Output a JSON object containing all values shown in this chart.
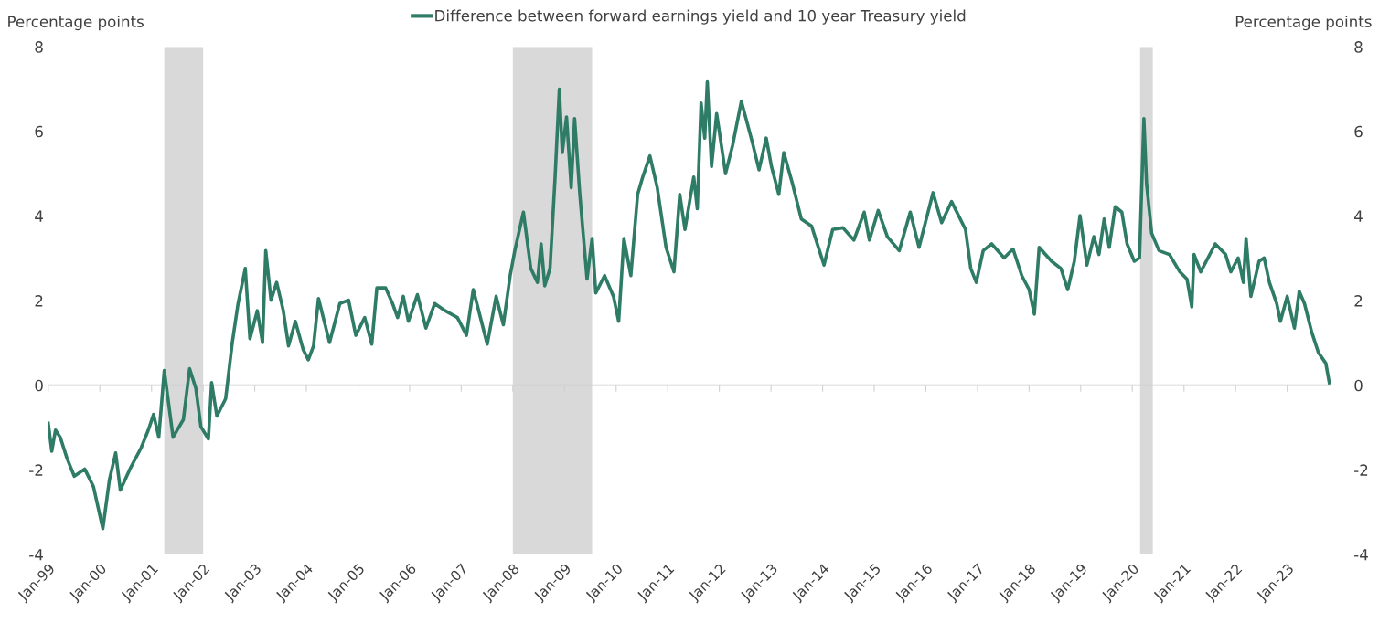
{
  "chart_data": {
    "type": "line",
    "ylabel": "Percentage points",
    "y2label": "Percentage points",
    "xlim": [
      "1999-01-01",
      "2023-11-05"
    ],
    "xticks": [
      {
        "value": "1999-01-01",
        "label": "Jan-99"
      },
      {
        "value": "2000-01-01",
        "label": "Jan-00"
      },
      {
        "value": "2001-01-01",
        "label": "Jan-01"
      },
      {
        "value": "2002-01-01",
        "label": "Jan-02"
      },
      {
        "value": "2003-01-01",
        "label": "Jan-03"
      },
      {
        "value": "2004-01-01",
        "label": "Jan-04"
      },
      {
        "value": "2005-01-01",
        "label": "Jan-05"
      },
      {
        "value": "2006-01-01",
        "label": "Jan-06"
      },
      {
        "value": "2007-01-01",
        "label": "Jan-07"
      },
      {
        "value": "2008-01-01",
        "label": "Jan-08"
      },
      {
        "value": "2009-01-01",
        "label": "Jan-09"
      },
      {
        "value": "2010-01-01",
        "label": "Jan-10"
      },
      {
        "value": "2011-01-01",
        "label": "Jan-11"
      },
      {
        "value": "2012-01-01",
        "label": "Jan-12"
      },
      {
        "value": "2013-01-01",
        "label": "Jan-13"
      },
      {
        "value": "2014-01-01",
        "label": "Jan-14"
      },
      {
        "value": "2015-01-01",
        "label": "Jan-15"
      },
      {
        "value": "2016-01-01",
        "label": "Jan-16"
      },
      {
        "value": "2017-01-01",
        "label": "Jan-17"
      },
      {
        "value": "2018-01-01",
        "label": "Jan-18"
      },
      {
        "value": "2019-01-01",
        "label": "Jan-19"
      },
      {
        "value": "2020-01-01",
        "label": "Jan-20"
      },
      {
        "value": "2021-01-01",
        "label": "Jan-21"
      },
      {
        "value": "2022-01-01",
        "label": "Jan-22"
      },
      {
        "value": "2023-01-01",
        "label": "Jan-23"
      }
    ],
    "ylim": [
      -4,
      8
    ],
    "yticks": [
      -4,
      -2,
      0,
      2,
      4,
      6,
      8
    ],
    "y2lim": [
      -4,
      8
    ],
    "y2ticks": [
      -4,
      -2,
      0,
      2,
      4,
      6,
      8
    ],
    "grid": false,
    "ref_lines": [
      {
        "axis": "y",
        "value": 0,
        "color": "#d0d0d0"
      }
    ],
    "legend": "top",
    "line_style": "solid",
    "marker": "none",
    "bands": [
      {
        "axis": "x",
        "from": "2001-04-01",
        "to": "2002-01-01",
        "color": "#d9d9d9"
      },
      {
        "axis": "x",
        "from": "2008-01-01",
        "to": "2009-07-15",
        "color": "#d9d9d9"
      },
      {
        "axis": "x",
        "from": "2020-02-25",
        "to": "2020-05-25",
        "color": "#d9d9d9"
      }
    ],
    "series": [
      {
        "name": "Difference between forward earnings yield and 10 year Treasury yield",
        "color": "#2e7b66",
        "x": [
          "1999-01-01",
          "1999-01-26",
          "1999-02-21",
          "1999-03-27",
          "1999-05-14",
          "1999-07-04",
          "1999-09-16",
          "1999-11-17",
          "2000-01-22",
          "2000-03-09",
          "2000-04-22",
          "2000-05-25",
          "2000-08-07",
          "2000-10-19",
          "2000-12-09",
          "2001-01-15",
          "2001-02-21",
          "2001-04-01",
          "2001-06-02",
          "2001-08-14",
          "2001-09-27",
          "2001-11-10",
          "2001-12-16",
          "2002-02-07",
          "2002-03-02",
          "2002-04-08",
          "2002-06-09",
          "2002-07-26",
          "2002-09-05",
          "2002-10-26",
          "2002-11-28",
          "2003-01-19",
          "2003-02-25",
          "2003-03-20",
          "2003-04-26",
          "2003-06-05",
          "2003-07-22",
          "2003-08-28",
          "2003-10-15",
          "2003-12-09",
          "2004-01-15",
          "2004-02-21",
          "2004-03-27",
          "2004-06-13",
          "2004-08-25",
          "2004-10-26",
          "2004-12-16",
          "2005-02-17",
          "2005-04-08",
          "2005-05-14",
          "2005-07-15",
          "2005-09-02",
          "2005-10-08",
          "2005-11-17",
          "2005-12-23",
          "2006-02-25",
          "2006-04-26",
          "2006-06-27",
          "2006-09-09",
          "2006-12-05",
          "2007-02-07",
          "2007-03-27",
          "2007-07-04",
          "2007-09-05",
          "2007-10-26",
          "2007-12-13",
          "2008-01-15",
          "2008-03-16",
          "2008-05-07",
          "2008-06-23",
          "2008-07-19",
          "2008-08-14",
          "2008-09-20",
          "2008-10-26",
          "2008-11-25",
          "2008-12-16",
          "2009-01-15",
          "2009-02-17",
          "2009-03-13",
          "2009-04-19",
          "2009-06-09",
          "2009-07-15",
          "2009-08-10",
          "2009-10-11",
          "2009-12-13",
          "2010-01-19",
          "2010-02-25",
          "2010-04-15",
          "2010-06-02",
          "2010-07-08",
          "2010-08-28",
          "2010-10-19",
          "2010-12-20",
          "2011-02-14",
          "2011-03-27",
          "2011-05-03",
          "2011-07-04",
          "2011-07-29",
          "2011-08-25",
          "2011-09-20",
          "2011-10-08",
          "2011-11-07",
          "2011-12-13",
          "2012-02-14",
          "2012-04-04",
          "2012-06-05",
          "2012-08-21",
          "2012-10-08",
          "2012-11-28",
          "2013-01-04",
          "2013-02-25",
          "2013-04-01",
          "2013-06-02",
          "2013-08-03",
          "2013-10-15",
          "2014-01-11",
          "2014-03-13",
          "2014-05-25",
          "2014-08-10",
          "2014-10-22",
          "2014-11-28",
          "2015-01-29",
          "2015-04-04",
          "2015-06-27",
          "2015-09-13",
          "2015-11-14",
          "2016-02-21",
          "2016-04-22",
          "2016-07-01",
          "2016-10-08",
          "2016-11-14",
          "2016-12-23",
          "2017-02-10",
          "2017-04-11",
          "2017-07-08",
          "2017-09-09",
          "2017-11-10",
          "2018-01-01",
          "2018-02-07",
          "2018-03-13",
          "2018-06-09",
          "2018-08-14",
          "2018-10-01",
          "2018-11-17",
          "2018-12-27",
          "2019-02-14",
          "2019-04-04",
          "2019-05-10",
          "2019-06-16",
          "2019-07-22",
          "2019-09-02",
          "2019-10-19",
          "2019-11-25",
          "2020-01-15",
          "2020-02-21",
          "2020-03-23",
          "2020-04-11",
          "2020-05-17",
          "2020-07-08",
          "2020-09-20",
          "2020-12-02",
          "2021-01-22",
          "2021-02-25",
          "2021-03-13",
          "2021-04-29",
          "2021-08-10",
          "2021-10-22",
          "2021-11-28",
          "2022-01-19",
          "2022-02-25",
          "2022-03-16",
          "2022-04-19",
          "2022-06-16",
          "2022-07-22",
          "2022-08-28",
          "2022-10-19",
          "2022-11-14",
          "2023-01-01",
          "2023-02-21",
          "2023-03-27",
          "2023-05-03",
          "2023-06-23",
          "2023-08-10",
          "2023-10-01",
          "2023-10-26"
        ],
        "values": [
          -0.9,
          -1.56,
          -1.06,
          -1.23,
          -1.73,
          -2.15,
          -1.98,
          -2.4,
          -3.39,
          -2.23,
          -1.6,
          -2.48,
          -1.94,
          -1.48,
          -1.06,
          -0.69,
          -1.23,
          0.35,
          -1.23,
          -0.81,
          0.39,
          -0.07,
          -0.98,
          -1.27,
          0.06,
          -0.73,
          -0.32,
          1.01,
          1.93,
          2.76,
          1.1,
          1.76,
          1.01,
          3.18,
          2.01,
          2.43,
          1.76,
          0.93,
          1.51,
          0.85,
          0.6,
          0.93,
          2.05,
          1.01,
          1.93,
          2.01,
          1.18,
          1.6,
          0.97,
          2.3,
          2.3,
          1.93,
          1.6,
          2.1,
          1.51,
          2.14,
          1.35,
          1.93,
          1.76,
          1.6,
          1.18,
          2.26,
          0.97,
          2.1,
          1.43,
          2.59,
          3.18,
          4.09,
          2.76,
          2.43,
          3.34,
          2.35,
          2.76,
          4.92,
          7.0,
          5.5,
          6.34,
          4.67,
          6.3,
          4.51,
          2.51,
          3.47,
          2.18,
          2.59,
          2.1,
          1.51,
          3.47,
          2.59,
          4.51,
          4.92,
          5.42,
          4.67,
          3.26,
          2.68,
          4.51,
          3.68,
          4.92,
          4.17,
          6.67,
          5.84,
          7.17,
          5.17,
          6.42,
          5.0,
          5.67,
          6.71,
          5.75,
          5.09,
          5.84,
          5.17,
          4.51,
          5.5,
          4.76,
          3.93,
          3.76,
          2.84,
          3.68,
          3.72,
          3.43,
          4.09,
          3.43,
          4.13,
          3.51,
          3.18,
          4.09,
          3.26,
          4.55,
          3.84,
          4.34,
          3.68,
          2.76,
          2.43,
          3.18,
          3.34,
          3.01,
          3.22,
          2.59,
          2.26,
          1.68,
          3.26,
          2.93,
          2.76,
          2.26,
          2.93,
          4.01,
          2.84,
          3.51,
          3.09,
          3.93,
          3.26,
          4.22,
          4.09,
          3.34,
          2.93,
          3.01,
          6.3,
          4.76,
          3.59,
          3.18,
          3.09,
          2.68,
          2.51,
          1.85,
          3.09,
          2.68,
          3.34,
          3.09,
          2.68,
          3.01,
          2.43,
          3.47,
          2.1,
          2.93,
          3.01,
          2.43,
          1.93,
          1.51,
          2.1,
          1.35,
          2.22,
          1.93,
          1.26,
          0.77,
          0.52,
          0.06
        ]
      }
    ]
  }
}
